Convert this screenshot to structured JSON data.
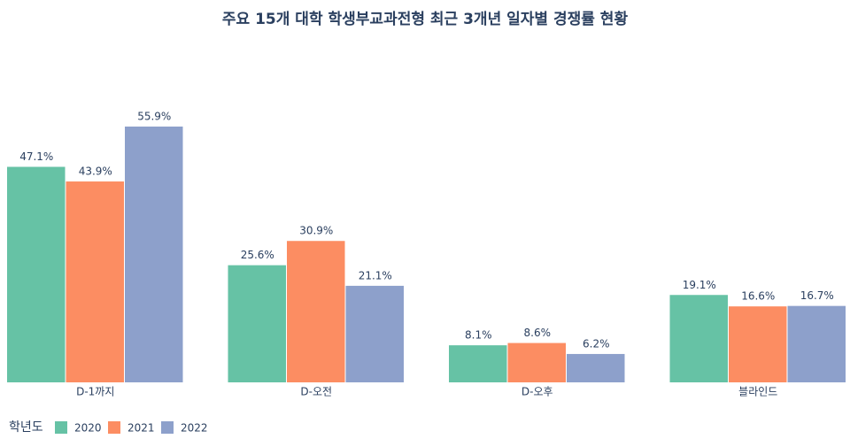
{
  "chart_data": {
    "type": "bar",
    "title": "주요 15개 대학 학생부교과전형 최근 3개년 일자별 경쟁률 현황",
    "categories": [
      "D-1까지",
      "D-오전",
      "D-오후",
      "블라인드"
    ],
    "legend_title": "학년도",
    "series": [
      {
        "name": "2020",
        "color": "#66c2a5",
        "values": [
          47.1,
          25.6,
          8.1,
          19.1
        ],
        "value_labels": [
          "47.1%",
          "25.6%",
          "8.1%",
          "19.1%"
        ]
      },
      {
        "name": "2021",
        "color": "#fc8d62",
        "values": [
          43.9,
          30.9,
          8.6,
          16.6
        ],
        "value_labels": [
          "43.9%",
          "30.9%",
          "8.6%",
          "16.6%"
        ]
      },
      {
        "name": "2022",
        "color": "#8da0cb",
        "values": [
          55.9,
          21.1,
          6.2,
          16.7
        ],
        "value_labels": [
          "55.9%",
          "21.1%",
          "6.2%",
          "16.7%"
        ]
      }
    ]
  }
}
